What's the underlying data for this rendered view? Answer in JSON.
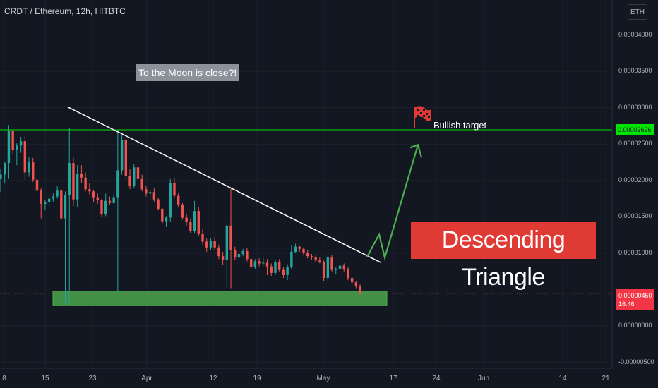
{
  "symbol": {
    "title": "CRDT / Ethereum, 12h, HITBTC",
    "currency": "ETH"
  },
  "annotations": {
    "moon_note": "To the Moon is close?!",
    "pattern_label": "Descending Triangle",
    "target_label": "Bullish target"
  },
  "price_tags": {
    "target": "0.00002696",
    "current": "0.00000450",
    "countdown": "16:46"
  },
  "colors": {
    "background": "#131722",
    "up": "#26a69a",
    "down": "#ef5350",
    "target_line": "#00e500",
    "support_zone": "#4caf50",
    "projection_arrow": "#4caf50",
    "pattern_label_bg": "#e03a35",
    "note_bg": "#8c929a"
  },
  "chart_data": {
    "type": "candlestick",
    "title": "CRDT / Ethereum, 12h, HITBTC",
    "x_tick_labels": [
      "8",
      "15",
      "23",
      "Apr",
      "12",
      "19",
      "May",
      "17",
      "24",
      "Jun",
      "14",
      "21"
    ],
    "y_tick_labels": [
      "0.00004000",
      "0.00003500",
      "0.00003000",
      "0.00002500",
      "0.00002000",
      "0.00001500",
      "0.00001000",
      "0.00000000",
      "-0.00000500"
    ],
    "y_ticks": [
      4e-05,
      3.5e-05,
      3e-05,
      2.5e-05,
      2e-05,
      1.5e-05,
      1e-05,
      0,
      -5e-06
    ],
    "ylim": [
      -5.8e-06,
      4.48e-05
    ],
    "log_scale": false,
    "grid": true,
    "target_level": 2.696e-05,
    "current_price": 4.5e-06,
    "support_zone": [
      2.8e-06,
      4.8e-06
    ],
    "trendline": [
      [
        3,
        3.01e-05
      ],
      [
        545,
        8.7e-06
      ]
    ],
    "projection": [
      [
        520,
        9.5e-06
      ],
      [
        537,
        1.26e-05
      ],
      [
        545,
        9.4e-06
      ],
      [
        592,
        2.49e-05
      ]
    ],
    "candles": [
      [
        2.02e-05,
        2.16e-05,
        1.84e-05,
        2.08e-05
      ],
      [
        2.08e-05,
        2.26e-05,
        1.96e-05,
        2.24e-05
      ],
      [
        2.24e-05,
        2.76e-05,
        2.02e-05,
        2.68e-05
      ],
      [
        2.68e-05,
        2.7e-05,
        2.36e-05,
        2.42e-05
      ],
      [
        2.42e-05,
        2.51e-05,
        2.21e-05,
        2.48e-05
      ],
      [
        2.48e-05,
        2.6e-05,
        2.38e-05,
        2.54e-05
      ],
      [
        2.54e-05,
        2.61e-05,
        2.01e-05,
        2.11e-05
      ],
      [
        2.11e-05,
        2.32e-05,
        2.05e-05,
        2.25e-05
      ],
      [
        2.25e-05,
        2.31e-05,
        1.98e-05,
        2.01e-05
      ],
      [
        2.01e-05,
        2.09e-05,
        1.82e-05,
        1.86e-05
      ],
      [
        1.86e-05,
        1.89e-05,
        1.48e-05,
        1.68e-05
      ],
      [
        1.68e-05,
        1.73e-05,
        1.59e-05,
        1.7e-05
      ],
      [
        1.7e-05,
        1.79e-05,
        1.63e-05,
        1.75e-05
      ],
      [
        1.75e-05,
        1.82e-05,
        1.71e-05,
        1.78e-05
      ],
      [
        1.78e-05,
        1.92e-05,
        1.75e-05,
        1.86e-05
      ],
      [
        1.86e-05,
        1.88e-05,
        1.46e-05,
        1.48e-05
      ],
      [
        1.48e-05,
        1.85e-05,
        3.2e-06,
        1.8e-05
      ],
      [
        1.8e-05,
        2.72e-05,
        2.9e-06,
        2.24e-05
      ],
      [
        2.24e-05,
        2.31e-05,
        1.65e-05,
        1.74e-05
      ],
      [
        1.74e-05,
        2.21e-05,
        1.63e-05,
        2.09e-05
      ],
      [
        2.09e-05,
        2.21e-05,
        1.96e-05,
        2.04e-05
      ],
      [
        2.04e-05,
        2.11e-05,
        1.85e-05,
        1.88e-05
      ],
      [
        1.88e-05,
        1.96e-05,
        1.81e-05,
        1.85e-05
      ],
      [
        1.85e-05,
        1.87e-05,
        1.7e-05,
        1.77e-05
      ],
      [
        1.77e-05,
        1.82e-05,
        1.68e-05,
        1.73e-05
      ],
      [
        1.73e-05,
        1.75e-05,
        1.5e-05,
        1.54e-05
      ],
      [
        1.54e-05,
        1.82e-05,
        1.51e-05,
        1.72e-05
      ],
      [
        1.72e-05,
        1.78e-05,
        1.66e-05,
        1.69e-05
      ],
      [
        1.69e-05,
        1.81e-05,
        1.68e-05,
        1.77e-05
      ],
      [
        1.77e-05,
        2.7e-05,
        4.7e-06,
        2.14e-05
      ],
      [
        2.14e-05,
        2.62e-05,
        2.08e-05,
        2.56e-05
      ],
      [
        2.56e-05,
        2.58e-05,
        2.02e-05,
        2.06e-05
      ],
      [
        2.06e-05,
        2.16e-05,
        1.88e-05,
        1.92e-05
      ],
      [
        1.92e-05,
        2.23e-05,
        1.89e-05,
        2.18e-05
      ],
      [
        2.18e-05,
        2.26e-05,
        1.99e-05,
        2.02e-05
      ],
      [
        2.02e-05,
        2.08e-05,
        1.85e-05,
        1.88e-05
      ],
      [
        1.88e-05,
        1.93e-05,
        1.78e-05,
        1.82e-05
      ],
      [
        1.82e-05,
        1.88e-05,
        1.73e-05,
        1.84e-05
      ],
      [
        1.84e-05,
        1.89e-05,
        1.71e-05,
        1.74e-05
      ],
      [
        1.74e-05,
        1.76e-05,
        1.59e-05,
        1.61e-05
      ],
      [
        1.61e-05,
        1.62e-05,
        1.41e-05,
        1.44e-05
      ],
      [
        1.44e-05,
        1.51e-05,
        1.36e-05,
        1.49e-05
      ],
      [
        1.49e-05,
        2.02e-05,
        1.43e-05,
        1.96e-05
      ],
      [
        1.96e-05,
        2.03e-05,
        1.76e-05,
        1.79e-05
      ],
      [
        1.79e-05,
        1.83e-05,
        1.63e-05,
        1.67e-05
      ],
      [
        1.67e-05,
        1.69e-05,
        1.46e-05,
        1.49e-05
      ],
      [
        1.49e-05,
        1.54e-05,
        1.38e-05,
        1.43e-05
      ],
      [
        1.43e-05,
        1.48e-05,
        1.28e-05,
        1.31e-05
      ],
      [
        1.31e-05,
        1.72e-05,
        1.28e-05,
        1.58e-05
      ],
      [
        1.58e-05,
        1.63e-05,
        1.24e-05,
        1.27e-05
      ],
      [
        1.27e-05,
        1.33e-05,
        1.12e-05,
        1.16e-05
      ],
      [
        1.16e-05,
        1.2e-05,
        1.02e-05,
        1.08e-05
      ],
      [
        1.08e-05,
        1.21e-05,
        1.04e-05,
        1.17e-05
      ],
      [
        1.17e-05,
        1.22e-05,
        1.05e-05,
        1.08e-05
      ],
      [
        1.08e-05,
        1.12e-05,
        9.2e-06,
        9.6e-06
      ],
      [
        9.6e-06,
        1.02e-05,
        8.4e-06,
        9.1e-06
      ],
      [
        9.1e-06,
        1.39e-05,
        5.3e-06,
        1.38e-05
      ],
      [
        1.38e-05,
        1.9e-05,
        5.2e-06,
        1.04e-05
      ],
      [
        1.04e-05,
        1.09e-05,
        9.1e-06,
        9.4e-06
      ],
      [
        9.4e-06,
        1.03e-05,
        8.6e-06,
        9.9e-06
      ],
      [
        9.9e-06,
        1.06e-05,
        9.6e-06,
        1.03e-05
      ],
      [
        1.03e-05,
        1.07e-05,
        8.9e-06,
        9.2e-06
      ],
      [
        9.2e-06,
        9.5e-06,
        7.9e-06,
        8.1e-06
      ],
      [
        8.1e-06,
        9.2e-06,
        7.8e-06,
        8.9e-06
      ],
      [
        8.9e-06,
        9.3e-06,
        8.2e-06,
        8.6e-06
      ],
      [
        8.6e-06,
        9.4e-06,
        8.3e-06,
        8.7e-06
      ],
      [
        8.7e-06,
        9.2e-06,
        7e-06,
        8.2e-06
      ],
      [
        8.2e-06,
        8.6e-06,
        6.9e-06,
        7.3e-06
      ],
      [
        7.3e-06,
        9.1e-06,
        7e-06,
        8.8e-06
      ],
      [
        8.8e-06,
        9.2e-06,
        7.5e-06,
        7.7e-06
      ],
      [
        7.7e-06,
        8.1e-06,
        6.6e-06,
        7e-06
      ],
      [
        7e-06,
        8.5e-06,
        6.3e-06,
        8.1e-06
      ],
      [
        8.1e-06,
        1.11e-05,
        7.8e-06,
        1.02e-05
      ],
      [
        1.02e-05,
        1.13e-05,
        1.01e-05,
        1.09e-05
      ],
      [
        1.09e-05,
        1.1e-05,
        1.02e-05,
        1.06e-05
      ],
      [
        1.06e-05,
        1.08e-05,
        9.7e-06,
        1.01e-05
      ],
      [
        1.01e-05,
        1.04e-05,
        9.3e-06,
        9.6e-06
      ],
      [
        9.6e-06,
        9.9e-06,
        9.1e-06,
        9.5e-06
      ],
      [
        9.5e-06,
        9.7e-06,
        8.8e-06,
        9e-06
      ],
      [
        9e-06,
        9.4e-06,
        8.6e-06,
        8.8e-06
      ],
      [
        8.8e-06,
        9e-06,
        6.2e-06,
        6.6e-06
      ],
      [
        6.6e-06,
        9.7e-06,
        6.3e-06,
        9.4e-06
      ],
      [
        9.4e-06,
        9.7e-06,
        7.5e-06,
        7.7e-06
      ],
      [
        7.7e-06,
        8.1e-06,
        7.1e-06,
        7.8e-06
      ],
      [
        7.8e-06,
        8.7e-06,
        7.6e-06,
        8.3e-06
      ],
      [
        8.3e-06,
        8.6e-06,
        7.5e-06,
        7.8e-06
      ],
      [
        7.8e-06,
        8.1e-06,
        6.3e-06,
        6.6e-06
      ],
      [
        6.6e-06,
        6.8e-06,
        5.7e-06,
        6e-06
      ],
      [
        6e-06,
        6.2e-06,
        5.2e-06,
        5.5e-06
      ],
      [
        5.5e-06,
        5.7e-06,
        4.3e-06,
        4.5e-06
      ]
    ]
  }
}
